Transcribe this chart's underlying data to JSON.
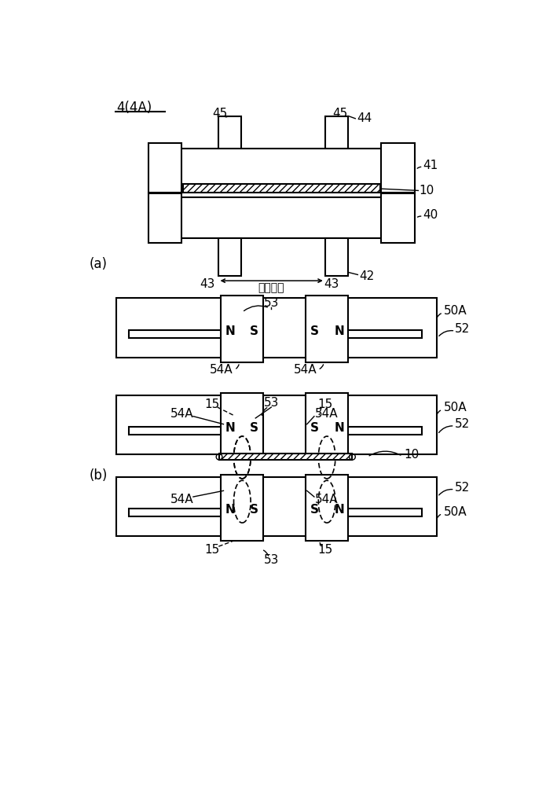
{
  "bg_color": "#ffffff",
  "line_color": "#000000",
  "fig_label": "4(4A)",
  "label_a": "(a)",
  "label_b": "(b)"
}
